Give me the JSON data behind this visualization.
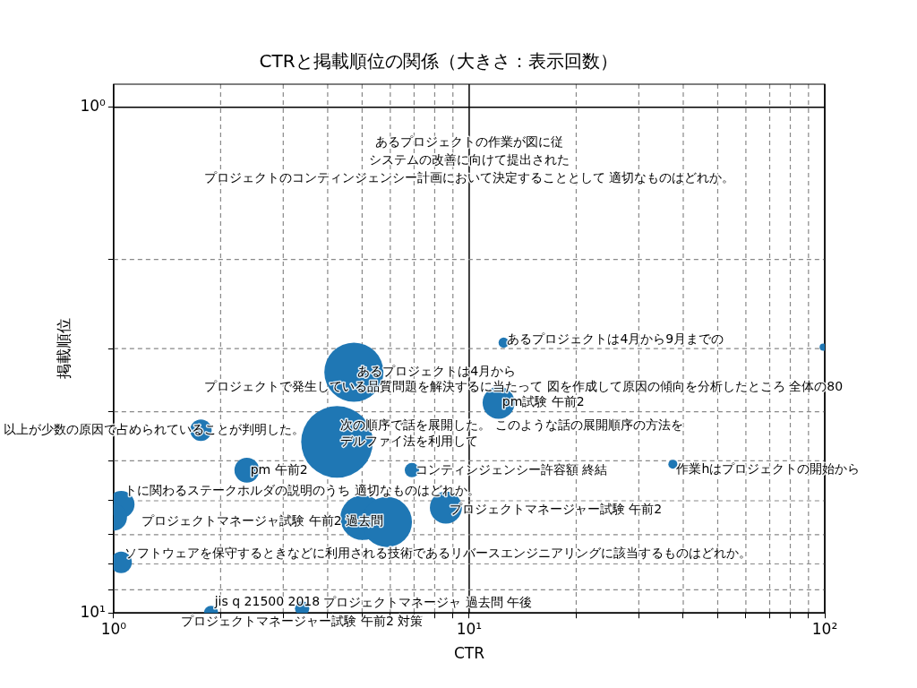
{
  "chart_data": {
    "type": "bubble",
    "title": "CTRと掲載順位の関係（大きさ：表示回数）",
    "xlabel": "CTR",
    "ylabel": "掲載順位",
    "log": "xy",
    "grid": true,
    "xlim": [
      1,
      100
    ],
    "ylim": [
      10,
      0.9
    ],
    "xticks": [
      {
        "value": 1,
        "label": "10⁰"
      },
      {
        "value": 2,
        "label": null
      },
      {
        "value": 3,
        "label": null
      },
      {
        "value": 4,
        "label": null
      },
      {
        "value": 5,
        "label": null
      },
      {
        "value": 6,
        "label": null
      },
      {
        "value": 7,
        "label": null
      },
      {
        "value": 8,
        "label": null
      },
      {
        "value": 9,
        "label": null
      },
      {
        "value": 10,
        "label": "10¹"
      },
      {
        "value": 20,
        "label": null
      },
      {
        "value": 30,
        "label": null
      },
      {
        "value": 40,
        "label": null
      },
      {
        "value": 50,
        "label": null
      },
      {
        "value": 60,
        "label": null
      },
      {
        "value": 70,
        "label": null
      },
      {
        "value": 80,
        "label": null
      },
      {
        "value": 90,
        "label": null
      },
      {
        "value": 100,
        "label": "10²"
      }
    ],
    "yticks": [
      {
        "value": 1,
        "label": "10⁰"
      },
      {
        "value": 2,
        "label": null
      },
      {
        "value": 3,
        "label": null
      },
      {
        "value": 4,
        "label": null
      },
      {
        "value": 5,
        "label": null
      },
      {
        "value": 6,
        "label": null
      },
      {
        "value": 7,
        "label": null
      },
      {
        "value": 8,
        "label": null
      },
      {
        "value": 9,
        "label": null
      },
      {
        "value": 10,
        "label": "10¹"
      }
    ],
    "series": [
      {
        "color": "#1f77b4",
        "x": [
          4.74,
          12.5,
          99,
          12.1,
          1.76,
          4.25,
          37.4,
          2.37,
          6.9,
          1.05,
          1.0,
          5.02,
          5.87,
          8.6,
          1.05,
          1.88,
          3.39
        ],
        "values": [
          3.34,
          2.92,
          2.98,
          3.84,
          4.35,
          4.59,
          5.08,
          5.22,
          5.22,
          6.1,
          6.47,
          6.48,
          6.61,
          6.19,
          7.94,
          10,
          9.8
        ],
        "sizes": [
          0.68,
          0.02,
          0.01,
          0.2,
          0.09,
          1,
          0.016,
          0.12,
          0.04,
          0.14,
          0.14,
          0.39,
          0.49,
          0.2,
          0.09,
          0.04,
          0.04
        ]
      }
    ],
    "annotations": [
      {
        "text": "あるプロジェクトは4月から",
        "x": 4.74,
        "y": 3.34
      },
      {
        "text": "あるプロジェクトは4月から9月までの",
        "x": 12.5,
        "y": 2.92
      },
      {
        "text": "pm試験 午前2",
        "x": 12.1,
        "y": 3.84
      },
      {
        "text": "プロジェクトで発生している品質問題を解決するに当たって 図を作成して原因の傾向を分析したところ 全体の80",
        "x": 1.76,
        "y": 4.35
      },
      {
        "text": "以上が少数の原因で占められていることが判明した。",
        "x": 1.76,
        "y": 4.35
      },
      {
        "text": "次の順序で話を展開した。 このような話の展開順序の方法を",
        "x": 4.25,
        "y": 4.59
      },
      {
        "text": "デルファイ法を利用して",
        "x": 4.25,
        "y": 4.59
      },
      "あるプロジェクトの作業が図に従",
      {
        "text": "作業hはプロジェクトの開始から",
        "x": 37.4,
        "y": 5.08
      },
      {
        "text": "pm 午前2",
        "x": 2.37,
        "y": 5.22
      },
      {
        "text": "コンティンジェンシー許容額 終結",
        "x": 6.9,
        "y": 5.22
      },
      {
        "text": "トに関わるステークホルダの説明のうち 適切なものはどれか。",
        "x": 1.05,
        "y": 6.1
      },
      {
        "text": "プロジェクトマネージャー試験 午前2",
        "x": 8.6,
        "y": 6.19
      },
      {
        "text": "プロジェクトマネージャ試験 午前2 過去問",
        "x": 5.87,
        "y": 6.61
      },
      {
        "text": "ソフトウェアを保守するときなどに利用される技術であるリバースエンジニアリングに該当するものはどれか。",
        "x": 1.05,
        "y": 7.94
      },
      "プロジェクトのコンティンジェンシー計画において決定することとして 適切なものはどれか。",
      "システムの改善に向けて提出された",
      {
        "text": "jis q 21500 2018",
        "x": 1.88,
        "y": 10
      },
      {
        "text": "プロジェクトマネージャー試験 午前2 対策",
        "x": 3.39,
        "y": 9.8
      },
      {
        "text": "プロジェクトマネージャ 過去問 午後",
        "x": 3.39,
        "y": 9.8
      }
    ]
  }
}
